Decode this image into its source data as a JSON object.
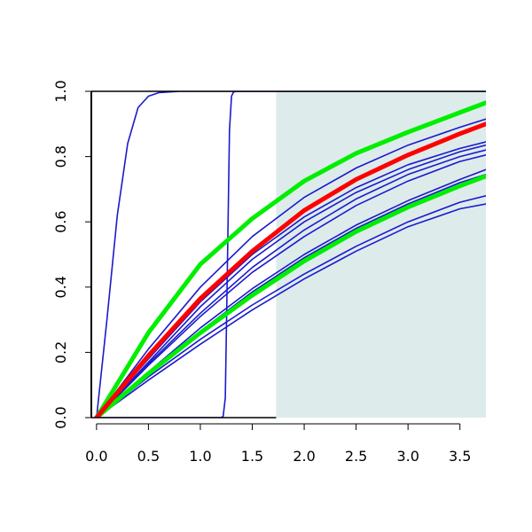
{
  "chart_data": {
    "type": "line",
    "title": "",
    "xlabel": "",
    "ylabel": "",
    "xlim": [
      -0.05,
      3.75
    ],
    "ylim": [
      0.0,
      1.0
    ],
    "grid": false,
    "x_ticks": [
      {
        "value": 0.0,
        "label": "0.0"
      },
      {
        "value": 0.5,
        "label": "0.5"
      },
      {
        "value": 1.0,
        "label": "1.0"
      },
      {
        "value": 1.5,
        "label": "1.5"
      },
      {
        "value": 2.0,
        "label": "2.0"
      },
      {
        "value": 2.5,
        "label": "2.5"
      },
      {
        "value": 3.0,
        "label": "3.0"
      },
      {
        "value": 3.5,
        "label": "3.5"
      }
    ],
    "y_ticks": [
      {
        "value": 0.0,
        "label": "0.0"
      },
      {
        "value": 0.2,
        "label": "0.2"
      },
      {
        "value": 0.4,
        "label": "0.4"
      },
      {
        "value": 0.6,
        "label": "0.6"
      },
      {
        "value": 0.8,
        "label": "0.8"
      },
      {
        "value": 1.0,
        "label": "1.0"
      }
    ],
    "shaded_region": {
      "x": [
        1.73,
        3.75
      ],
      "y": [
        0.0,
        1.0
      ],
      "color": "#deebeb"
    },
    "colors": {
      "blue": "#1a1acc",
      "red": "#ff0000",
      "green": "#00ee00",
      "axis": "#000000"
    },
    "series": [
      {
        "color": "#1a1acc",
        "width": 1.6,
        "x": [
          0,
          0.1,
          0.2,
          0.3,
          0.4,
          0.5,
          0.6,
          0.8,
          1.0,
          1.5,
          2.0,
          3.0,
          3.75
        ],
        "y": [
          0,
          0.3,
          0.62,
          0.84,
          0.95,
          0.985,
          0.996,
          1.0,
          1.0,
          1.0,
          1.0,
          1.0,
          1.0
        ]
      },
      {
        "color": "#1a1acc",
        "width": 1.6,
        "x": [
          0,
          1.0,
          1.2,
          1.22,
          1.24,
          1.26,
          1.28,
          1.3,
          1.32,
          1.35,
          1.5,
          2.0,
          3.0,
          3.75
        ],
        "y": [
          0,
          0,
          0,
          0.004,
          0.06,
          0.45,
          0.88,
          0.985,
          0.998,
          1.0,
          1.0,
          1.0,
          1.0,
          1.0
        ]
      },
      {
        "color": "#1a1acc",
        "width": 1.6,
        "x": [
          0,
          0.5,
          1.0,
          1.5,
          2.0,
          2.5,
          3.0,
          3.5,
          3.75
        ],
        "y": [
          0,
          0.21,
          0.4,
          0.555,
          0.675,
          0.765,
          0.835,
          0.89,
          0.915
        ]
      },
      {
        "color": "#1a1acc",
        "width": 1.6,
        "x": [
          0,
          0.5,
          1.0,
          1.5,
          2.0,
          2.5,
          3.0,
          3.5,
          3.75
        ],
        "y": [
          0,
          0.18,
          0.355,
          0.5,
          0.615,
          0.705,
          0.775,
          0.825,
          0.845
        ]
      },
      {
        "color": "#1a1acc",
        "width": 1.6,
        "x": [
          0,
          0.5,
          1.0,
          1.5,
          2.0,
          2.5,
          3.0,
          3.5,
          3.75
        ],
        "y": [
          0,
          0.17,
          0.34,
          0.485,
          0.6,
          0.69,
          0.76,
          0.815,
          0.835
        ]
      },
      {
        "color": "#1a1acc",
        "width": 1.6,
        "x": [
          0,
          0.5,
          1.0,
          1.5,
          2.0,
          2.5,
          3.0,
          3.5,
          3.75
        ],
        "y": [
          0,
          0.165,
          0.32,
          0.46,
          0.575,
          0.67,
          0.745,
          0.8,
          0.82
        ]
      },
      {
        "color": "#1a1acc",
        "width": 1.6,
        "x": [
          0,
          0.5,
          1.0,
          1.5,
          2.0,
          2.5,
          3.0,
          3.5,
          3.75
        ],
        "y": [
          0,
          0.16,
          0.31,
          0.445,
          0.555,
          0.65,
          0.725,
          0.785,
          0.805
        ]
      },
      {
        "color": "#1a1acc",
        "width": 1.6,
        "x": [
          0,
          0.5,
          1.0,
          1.5,
          2.0,
          2.5,
          3.0,
          3.5,
          3.75
        ],
        "y": [
          0,
          0.14,
          0.275,
          0.395,
          0.5,
          0.59,
          0.665,
          0.73,
          0.76
        ]
      },
      {
        "color": "#1a1acc",
        "width": 1.6,
        "x": [
          0,
          0.5,
          1.0,
          1.5,
          2.0,
          2.5,
          3.0,
          3.5,
          3.75
        ],
        "y": [
          0,
          0.135,
          0.265,
          0.385,
          0.49,
          0.58,
          0.655,
          0.72,
          0.745
        ]
      },
      {
        "color": "#1a1acc",
        "width": 1.6,
        "x": [
          0,
          0.5,
          1.0,
          1.5,
          2.0,
          2.5,
          3.0,
          3.5,
          3.75
        ],
        "y": [
          0,
          0.125,
          0.24,
          0.345,
          0.44,
          0.525,
          0.6,
          0.66,
          0.68
        ]
      },
      {
        "color": "#1a1acc",
        "width": 1.6,
        "x": [
          0,
          0.5,
          1.0,
          1.5,
          2.0,
          2.5,
          3.0,
          3.5,
          3.75
        ],
        "y": [
          0,
          0.115,
          0.225,
          0.33,
          0.425,
          0.51,
          0.585,
          0.64,
          0.655
        ]
      },
      {
        "color": "#00ee00",
        "width": 5,
        "x": [
          0,
          0.5,
          1.0,
          1.5,
          2.0,
          2.5,
          3.0,
          3.5,
          3.75
        ],
        "y": [
          0,
          0.26,
          0.47,
          0.61,
          0.725,
          0.81,
          0.875,
          0.935,
          0.965
        ]
      },
      {
        "color": "#00ee00",
        "width": 5,
        "x": [
          0,
          0.5,
          1.0,
          1.5,
          2.0,
          2.5,
          3.0,
          3.5,
          3.75
        ],
        "y": [
          0,
          0.135,
          0.26,
          0.375,
          0.48,
          0.57,
          0.645,
          0.71,
          0.74
        ]
      },
      {
        "color": "#ff0000",
        "width": 5,
        "x": [
          0,
          0.5,
          1.0,
          1.5,
          2.0,
          2.5,
          3.0,
          3.5,
          3.75
        ],
        "y": [
          0,
          0.19,
          0.365,
          0.51,
          0.635,
          0.73,
          0.805,
          0.87,
          0.9
        ]
      }
    ]
  }
}
